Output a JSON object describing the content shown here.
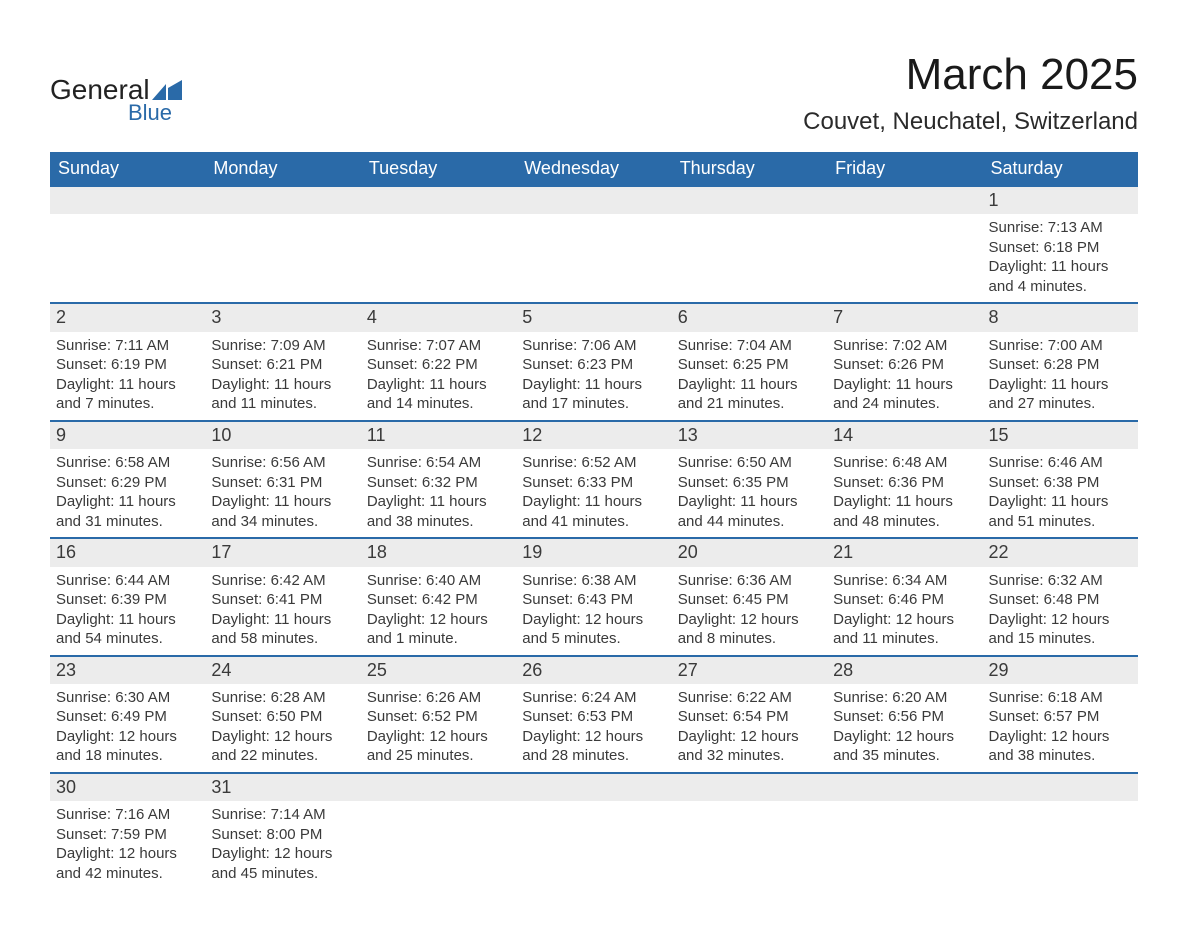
{
  "brand": {
    "word1": "General",
    "word2": "Blue"
  },
  "title": "March 2025",
  "location": "Couvet, Neuchatel, Switzerland",
  "colors": {
    "header_bg": "#2a6aa8",
    "header_text": "#ffffff",
    "daynum_bg": "#ececec",
    "row_border": "#2a6aa8",
    "body_text": "#3a3a3a",
    "page_bg": "#ffffff"
  },
  "typography": {
    "title_fontsize": 44,
    "location_fontsize": 24,
    "weekday_fontsize": 18,
    "cell_fontsize": 15
  },
  "weekdays": [
    "Sunday",
    "Monday",
    "Tuesday",
    "Wednesday",
    "Thursday",
    "Friday",
    "Saturday"
  ],
  "weeks": [
    [
      null,
      null,
      null,
      null,
      null,
      null,
      {
        "n": "1",
        "sr": "Sunrise: 7:13 AM",
        "ss": "Sunset: 6:18 PM",
        "d1": "Daylight: 11 hours",
        "d2": "and 4 minutes."
      }
    ],
    [
      {
        "n": "2",
        "sr": "Sunrise: 7:11 AM",
        "ss": "Sunset: 6:19 PM",
        "d1": "Daylight: 11 hours",
        "d2": "and 7 minutes."
      },
      {
        "n": "3",
        "sr": "Sunrise: 7:09 AM",
        "ss": "Sunset: 6:21 PM",
        "d1": "Daylight: 11 hours",
        "d2": "and 11 minutes."
      },
      {
        "n": "4",
        "sr": "Sunrise: 7:07 AM",
        "ss": "Sunset: 6:22 PM",
        "d1": "Daylight: 11 hours",
        "d2": "and 14 minutes."
      },
      {
        "n": "5",
        "sr": "Sunrise: 7:06 AM",
        "ss": "Sunset: 6:23 PM",
        "d1": "Daylight: 11 hours",
        "d2": "and 17 minutes."
      },
      {
        "n": "6",
        "sr": "Sunrise: 7:04 AM",
        "ss": "Sunset: 6:25 PM",
        "d1": "Daylight: 11 hours",
        "d2": "and 21 minutes."
      },
      {
        "n": "7",
        "sr": "Sunrise: 7:02 AM",
        "ss": "Sunset: 6:26 PM",
        "d1": "Daylight: 11 hours",
        "d2": "and 24 minutes."
      },
      {
        "n": "8",
        "sr": "Sunrise: 7:00 AM",
        "ss": "Sunset: 6:28 PM",
        "d1": "Daylight: 11 hours",
        "d2": "and 27 minutes."
      }
    ],
    [
      {
        "n": "9",
        "sr": "Sunrise: 6:58 AM",
        "ss": "Sunset: 6:29 PM",
        "d1": "Daylight: 11 hours",
        "d2": "and 31 minutes."
      },
      {
        "n": "10",
        "sr": "Sunrise: 6:56 AM",
        "ss": "Sunset: 6:31 PM",
        "d1": "Daylight: 11 hours",
        "d2": "and 34 minutes."
      },
      {
        "n": "11",
        "sr": "Sunrise: 6:54 AM",
        "ss": "Sunset: 6:32 PM",
        "d1": "Daylight: 11 hours",
        "d2": "and 38 minutes."
      },
      {
        "n": "12",
        "sr": "Sunrise: 6:52 AM",
        "ss": "Sunset: 6:33 PM",
        "d1": "Daylight: 11 hours",
        "d2": "and 41 minutes."
      },
      {
        "n": "13",
        "sr": "Sunrise: 6:50 AM",
        "ss": "Sunset: 6:35 PM",
        "d1": "Daylight: 11 hours",
        "d2": "and 44 minutes."
      },
      {
        "n": "14",
        "sr": "Sunrise: 6:48 AM",
        "ss": "Sunset: 6:36 PM",
        "d1": "Daylight: 11 hours",
        "d2": "and 48 minutes."
      },
      {
        "n": "15",
        "sr": "Sunrise: 6:46 AM",
        "ss": "Sunset: 6:38 PM",
        "d1": "Daylight: 11 hours",
        "d2": "and 51 minutes."
      }
    ],
    [
      {
        "n": "16",
        "sr": "Sunrise: 6:44 AM",
        "ss": "Sunset: 6:39 PM",
        "d1": "Daylight: 11 hours",
        "d2": "and 54 minutes."
      },
      {
        "n": "17",
        "sr": "Sunrise: 6:42 AM",
        "ss": "Sunset: 6:41 PM",
        "d1": "Daylight: 11 hours",
        "d2": "and 58 minutes."
      },
      {
        "n": "18",
        "sr": "Sunrise: 6:40 AM",
        "ss": "Sunset: 6:42 PM",
        "d1": "Daylight: 12 hours",
        "d2": "and 1 minute."
      },
      {
        "n": "19",
        "sr": "Sunrise: 6:38 AM",
        "ss": "Sunset: 6:43 PM",
        "d1": "Daylight: 12 hours",
        "d2": "and 5 minutes."
      },
      {
        "n": "20",
        "sr": "Sunrise: 6:36 AM",
        "ss": "Sunset: 6:45 PM",
        "d1": "Daylight: 12 hours",
        "d2": "and 8 minutes."
      },
      {
        "n": "21",
        "sr": "Sunrise: 6:34 AM",
        "ss": "Sunset: 6:46 PM",
        "d1": "Daylight: 12 hours",
        "d2": "and 11 minutes."
      },
      {
        "n": "22",
        "sr": "Sunrise: 6:32 AM",
        "ss": "Sunset: 6:48 PM",
        "d1": "Daylight: 12 hours",
        "d2": "and 15 minutes."
      }
    ],
    [
      {
        "n": "23",
        "sr": "Sunrise: 6:30 AM",
        "ss": "Sunset: 6:49 PM",
        "d1": "Daylight: 12 hours",
        "d2": "and 18 minutes."
      },
      {
        "n": "24",
        "sr": "Sunrise: 6:28 AM",
        "ss": "Sunset: 6:50 PM",
        "d1": "Daylight: 12 hours",
        "d2": "and 22 minutes."
      },
      {
        "n": "25",
        "sr": "Sunrise: 6:26 AM",
        "ss": "Sunset: 6:52 PM",
        "d1": "Daylight: 12 hours",
        "d2": "and 25 minutes."
      },
      {
        "n": "26",
        "sr": "Sunrise: 6:24 AM",
        "ss": "Sunset: 6:53 PM",
        "d1": "Daylight: 12 hours",
        "d2": "and 28 minutes."
      },
      {
        "n": "27",
        "sr": "Sunrise: 6:22 AM",
        "ss": "Sunset: 6:54 PM",
        "d1": "Daylight: 12 hours",
        "d2": "and 32 minutes."
      },
      {
        "n": "28",
        "sr": "Sunrise: 6:20 AM",
        "ss": "Sunset: 6:56 PM",
        "d1": "Daylight: 12 hours",
        "d2": "and 35 minutes."
      },
      {
        "n": "29",
        "sr": "Sunrise: 6:18 AM",
        "ss": "Sunset: 6:57 PM",
        "d1": "Daylight: 12 hours",
        "d2": "and 38 minutes."
      }
    ],
    [
      {
        "n": "30",
        "sr": "Sunrise: 7:16 AM",
        "ss": "Sunset: 7:59 PM",
        "d1": "Daylight: 12 hours",
        "d2": "and 42 minutes."
      },
      {
        "n": "31",
        "sr": "Sunrise: 7:14 AM",
        "ss": "Sunset: 8:00 PM",
        "d1": "Daylight: 12 hours",
        "d2": "and 45 minutes."
      },
      null,
      null,
      null,
      null,
      null
    ]
  ]
}
